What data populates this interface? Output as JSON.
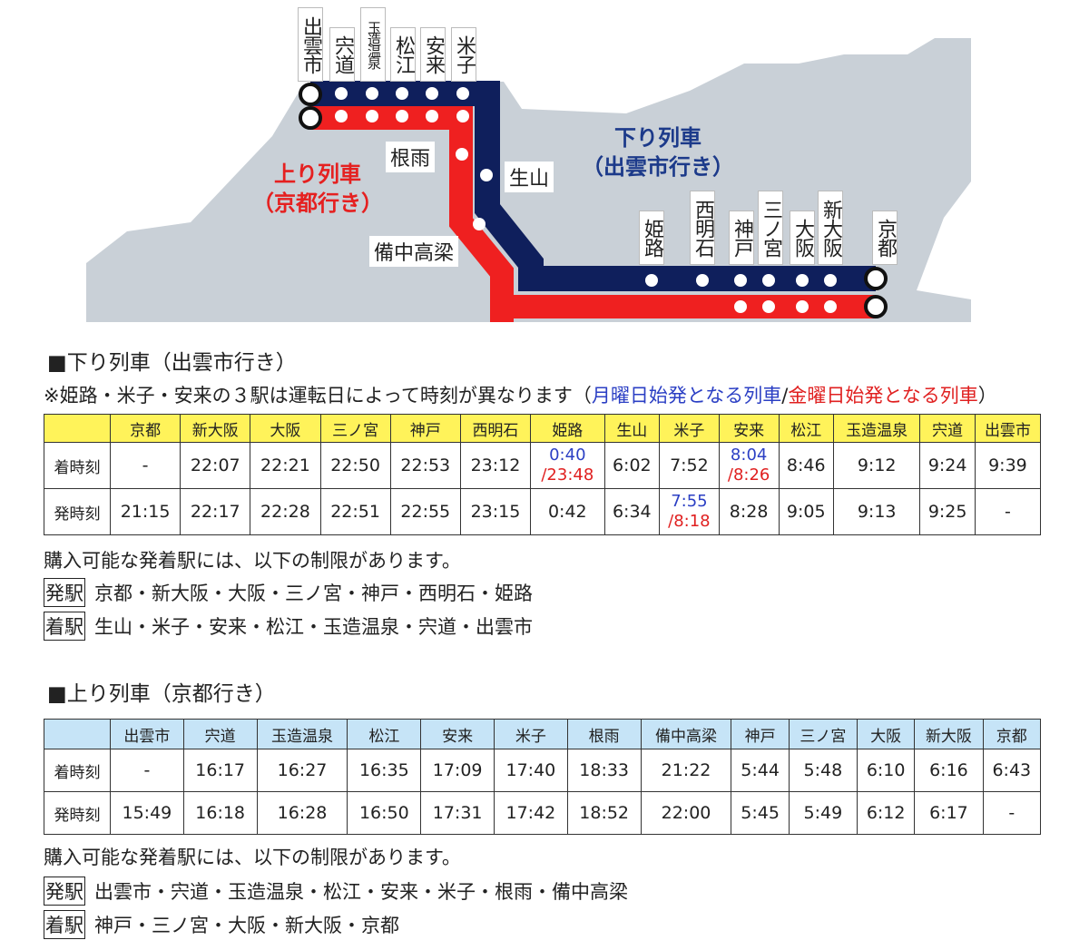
{
  "map": {
    "west_stations": [
      "出雲市",
      "宍道",
      "玉造温泉",
      "松江",
      "安来",
      "米子"
    ],
    "mid_stations": {
      "neu": "根雨",
      "shozan": "生山",
      "bitchu": "備中高梁"
    },
    "east_stations": [
      "姫路",
      "西明石",
      "神戸",
      "三ノ宮",
      "大阪",
      "新大阪",
      "京都"
    ],
    "down_title": [
      "下り列車",
      "（出雲市行き）"
    ],
    "up_title": [
      "上り列車",
      "（京都行き）"
    ],
    "colors": {
      "down_line": "#0f1f5c",
      "up_line": "#ef2020",
      "land": "#c9d0d7"
    }
  },
  "down": {
    "heading": "■下り列車（出雲市行き）",
    "note_prefix": "※姫路・米子・安来の３駅は運転日によって時刻が異なります（",
    "note_blue": "月曜日始発となる列車",
    "note_slash": "/",
    "note_red": "金曜日始発となる列車",
    "note_suffix": "）",
    "header": [
      "",
      "京都",
      "新大阪",
      "大阪",
      "三ノ宮",
      "神戸",
      "西明石",
      "姫路",
      "生山",
      "米子",
      "安来",
      "松江",
      "玉造温泉",
      "宍道",
      "出雲市"
    ],
    "header_bg": "#fff35a",
    "arrive_label": "着時刻",
    "depart_label": "発時刻",
    "arrive": [
      "-",
      "22:07",
      "22:21",
      "22:50",
      "22:53",
      "23:12",
      {
        "blue": "0:40",
        "red": "/23:48"
      },
      "6:02",
      "7:52",
      {
        "blue": "8:04",
        "red": "/8:26"
      },
      "8:46",
      "9:12",
      "9:24",
      "9:39"
    ],
    "depart": [
      "21:15",
      "22:17",
      "22:28",
      "22:51",
      "22:55",
      "23:15",
      "0:42",
      "6:34",
      {
        "blue": "7:55",
        "red": "/8:18"
      },
      "8:28",
      "9:05",
      "9:13",
      "9:25",
      "-"
    ],
    "restriction": "購入可能な発着駅には、以下の制限があります。",
    "dep_tag": "発駅",
    "dep_stations": "京都・新大阪・大阪・三ノ宮・神戸・西明石・姫路",
    "arr_tag": "着駅",
    "arr_stations": "生山・米子・安来・松江・玉造温泉・宍道・出雲市"
  },
  "up": {
    "heading": "■上り列車（京都行き）",
    "header": [
      "",
      "出雲市",
      "宍道",
      "玉造温泉",
      "松江",
      "安来",
      "米子",
      "根雨",
      "備中高梁",
      "神戸",
      "三ノ宮",
      "大阪",
      "新大阪",
      "京都"
    ],
    "header_bg": "#c6e4f7",
    "arrive_label": "着時刻",
    "depart_label": "発時刻",
    "arrive": [
      "-",
      "16:17",
      "16:27",
      "16:35",
      "17:09",
      "17:40",
      "18:33",
      "21:22",
      "5:44",
      "5:48",
      "6:10",
      "6:16",
      "6:43"
    ],
    "depart": [
      "15:49",
      "16:18",
      "16:28",
      "16:50",
      "17:31",
      "17:42",
      "18:52",
      "22:00",
      "5:45",
      "5:49",
      "6:12",
      "6:17",
      "-"
    ],
    "restriction": "購入可能な発着駅には、以下の制限があります。",
    "dep_tag": "発駅",
    "dep_stations": "出雲市・宍道・玉造温泉・松江・安来・米子・根雨・備中高梁",
    "arr_tag": "着駅",
    "arr_stations": "神戸・三ノ宮・大阪・新大阪・京都"
  }
}
